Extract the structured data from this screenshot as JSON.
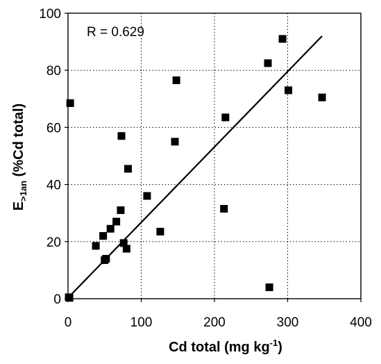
{
  "chart_data": {
    "type": "scatter",
    "title": "",
    "xlabel": "Cd total (mg kg",
    "xlabel_sup": "-1",
    "xlabel_close": ")",
    "ylabel_main": "E",
    "ylabel_sub": ">1an",
    "ylabel_rest": " (%Cd total)",
    "annotation": "R = 0.629",
    "xlim": [
      0,
      400
    ],
    "ylim": [
      0,
      100
    ],
    "x_ticks": [
      0,
      100,
      200,
      300,
      400
    ],
    "y_ticks": [
      0,
      20,
      40,
      60,
      80,
      100
    ],
    "grid": true,
    "grid_style": "dotted",
    "legend": "none",
    "marker": "square",
    "marker_color": "#000000",
    "points": [
      {
        "x": 1,
        "y": 0.5
      },
      {
        "x": 2,
        "y": 0.3
      },
      {
        "x": 3,
        "y": 68.5
      },
      {
        "x": 38,
        "y": 18.5
      },
      {
        "x": 48,
        "y": 22
      },
      {
        "x": 50,
        "y": 13.5
      },
      {
        "x": 52,
        "y": 14
      },
      {
        "x": 58,
        "y": 24.5
      },
      {
        "x": 66,
        "y": 27
      },
      {
        "x": 72,
        "y": 31
      },
      {
        "x": 73,
        "y": 57
      },
      {
        "x": 76,
        "y": 19.5
      },
      {
        "x": 80,
        "y": 17.5
      },
      {
        "x": 82,
        "y": 45.5
      },
      {
        "x": 108,
        "y": 36
      },
      {
        "x": 126,
        "y": 23.5
      },
      {
        "x": 146,
        "y": 55
      },
      {
        "x": 148,
        "y": 76.5
      },
      {
        "x": 213,
        "y": 31.5
      },
      {
        "x": 215,
        "y": 63.5
      },
      {
        "x": 273,
        "y": 82.5
      },
      {
        "x": 275,
        "y": 4
      },
      {
        "x": 293,
        "y": 91
      },
      {
        "x": 301,
        "y": 73
      },
      {
        "x": 347,
        "y": 70.5
      }
    ],
    "trendline": {
      "x": [
        0,
        347
      ],
      "y": [
        0.3,
        92
      ]
    }
  }
}
